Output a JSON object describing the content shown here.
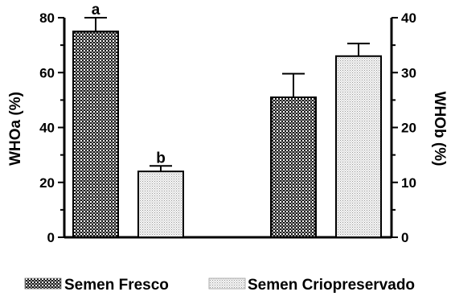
{
  "chart_data": {
    "type": "bar",
    "left_axis": {
      "title": "WHOa (%)",
      "ylim": [
        0,
        80
      ],
      "ticks": [
        "0",
        "20",
        "40",
        "60",
        "80"
      ]
    },
    "right_axis": {
      "title": "WHOb (%)",
      "ylim": [
        0,
        40
      ],
      "ticks": [
        "0",
        "10",
        "20",
        "30",
        "40"
      ]
    },
    "groups": [
      {
        "axis": "left",
        "bars": [
          {
            "series": "Semen Fresco",
            "value": 75,
            "error": 5,
            "annotation": "a"
          },
          {
            "series": "Semen Criopreservado",
            "value": 24,
            "error": 2,
            "annotation": "b"
          }
        ]
      },
      {
        "axis": "right",
        "bars": [
          {
            "series": "Semen Fresco",
            "value": 25.5,
            "error": 4.3,
            "annotation": ""
          },
          {
            "series": "Semen Criopreservado",
            "value": 33,
            "error": 2.3,
            "annotation": ""
          }
        ]
      }
    ],
    "legend": {
      "placement": "bottom",
      "items": [
        {
          "label": "Semen Fresco",
          "pattern": "checker-dark"
        },
        {
          "label": "Semen Criopreservado",
          "pattern": "dots-light"
        }
      ]
    },
    "grid": false,
    "colors": {
      "axis": "#000000",
      "bar_outline": "#000000"
    }
  }
}
